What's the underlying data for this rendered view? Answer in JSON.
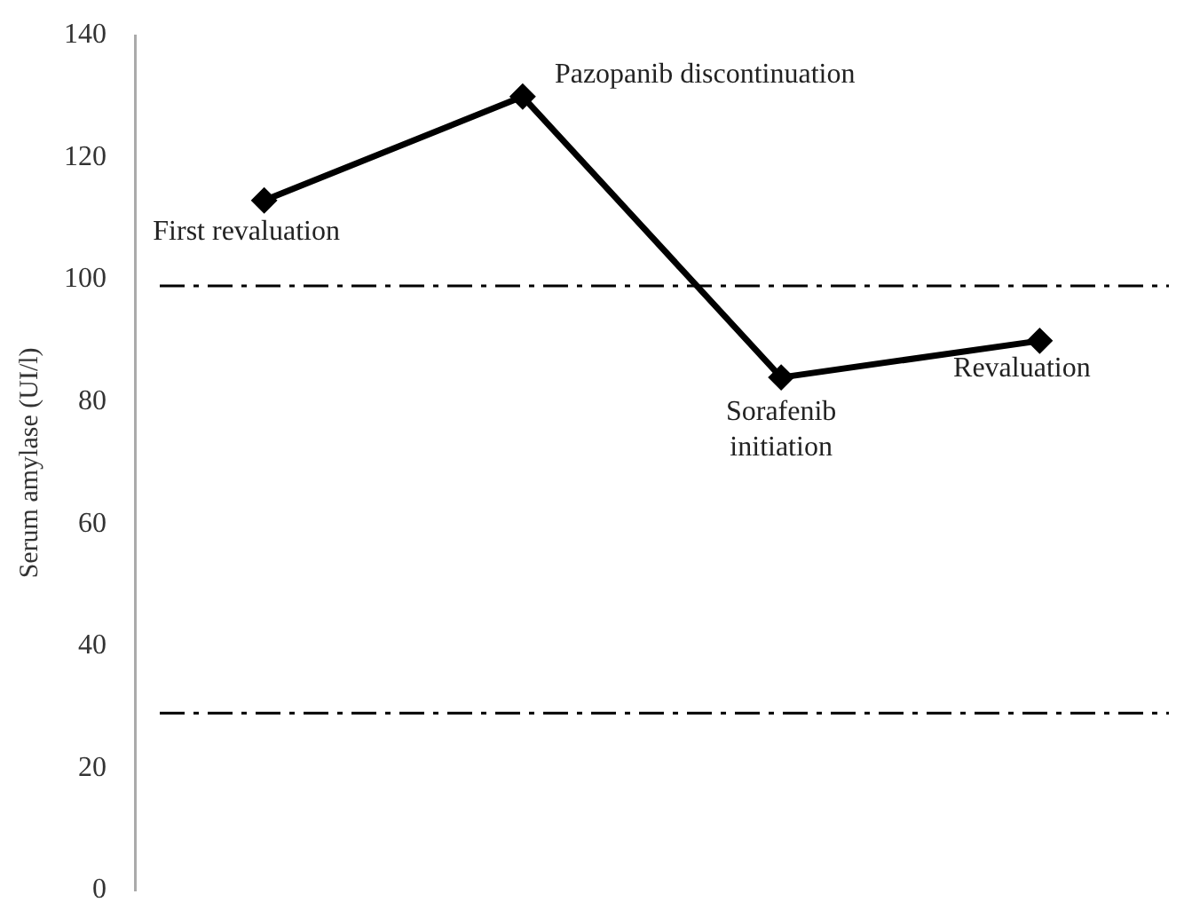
{
  "chart_data": {
    "type": "line",
    "ylabel": "Serum amylase (UI/l)",
    "categories": [
      null,
      null,
      null,
      null
    ],
    "series": [
      {
        "color": "#000000",
        "values": [
          113,
          130,
          84,
          90
        ]
      }
    ],
    "ylim": [
      0,
      140
    ],
    "yticks": [
      0,
      20,
      40,
      60,
      80,
      100,
      120,
      140
    ],
    "grid": false,
    "legend": false,
    "marker": "diamond",
    "line_style": "solid",
    "ref_lines": [
      {
        "axis": "y",
        "value": 99,
        "color": "#000000",
        "line_style": "dashed"
      },
      {
        "axis": "y",
        "value": 29,
        "color": "#000000",
        "line_style": "dashed"
      }
    ],
    "annotations": [
      "First revaluation",
      "Pazopanib discontinuation",
      "Sorafenib\ninitiation",
      "Revaluation"
    ]
  }
}
